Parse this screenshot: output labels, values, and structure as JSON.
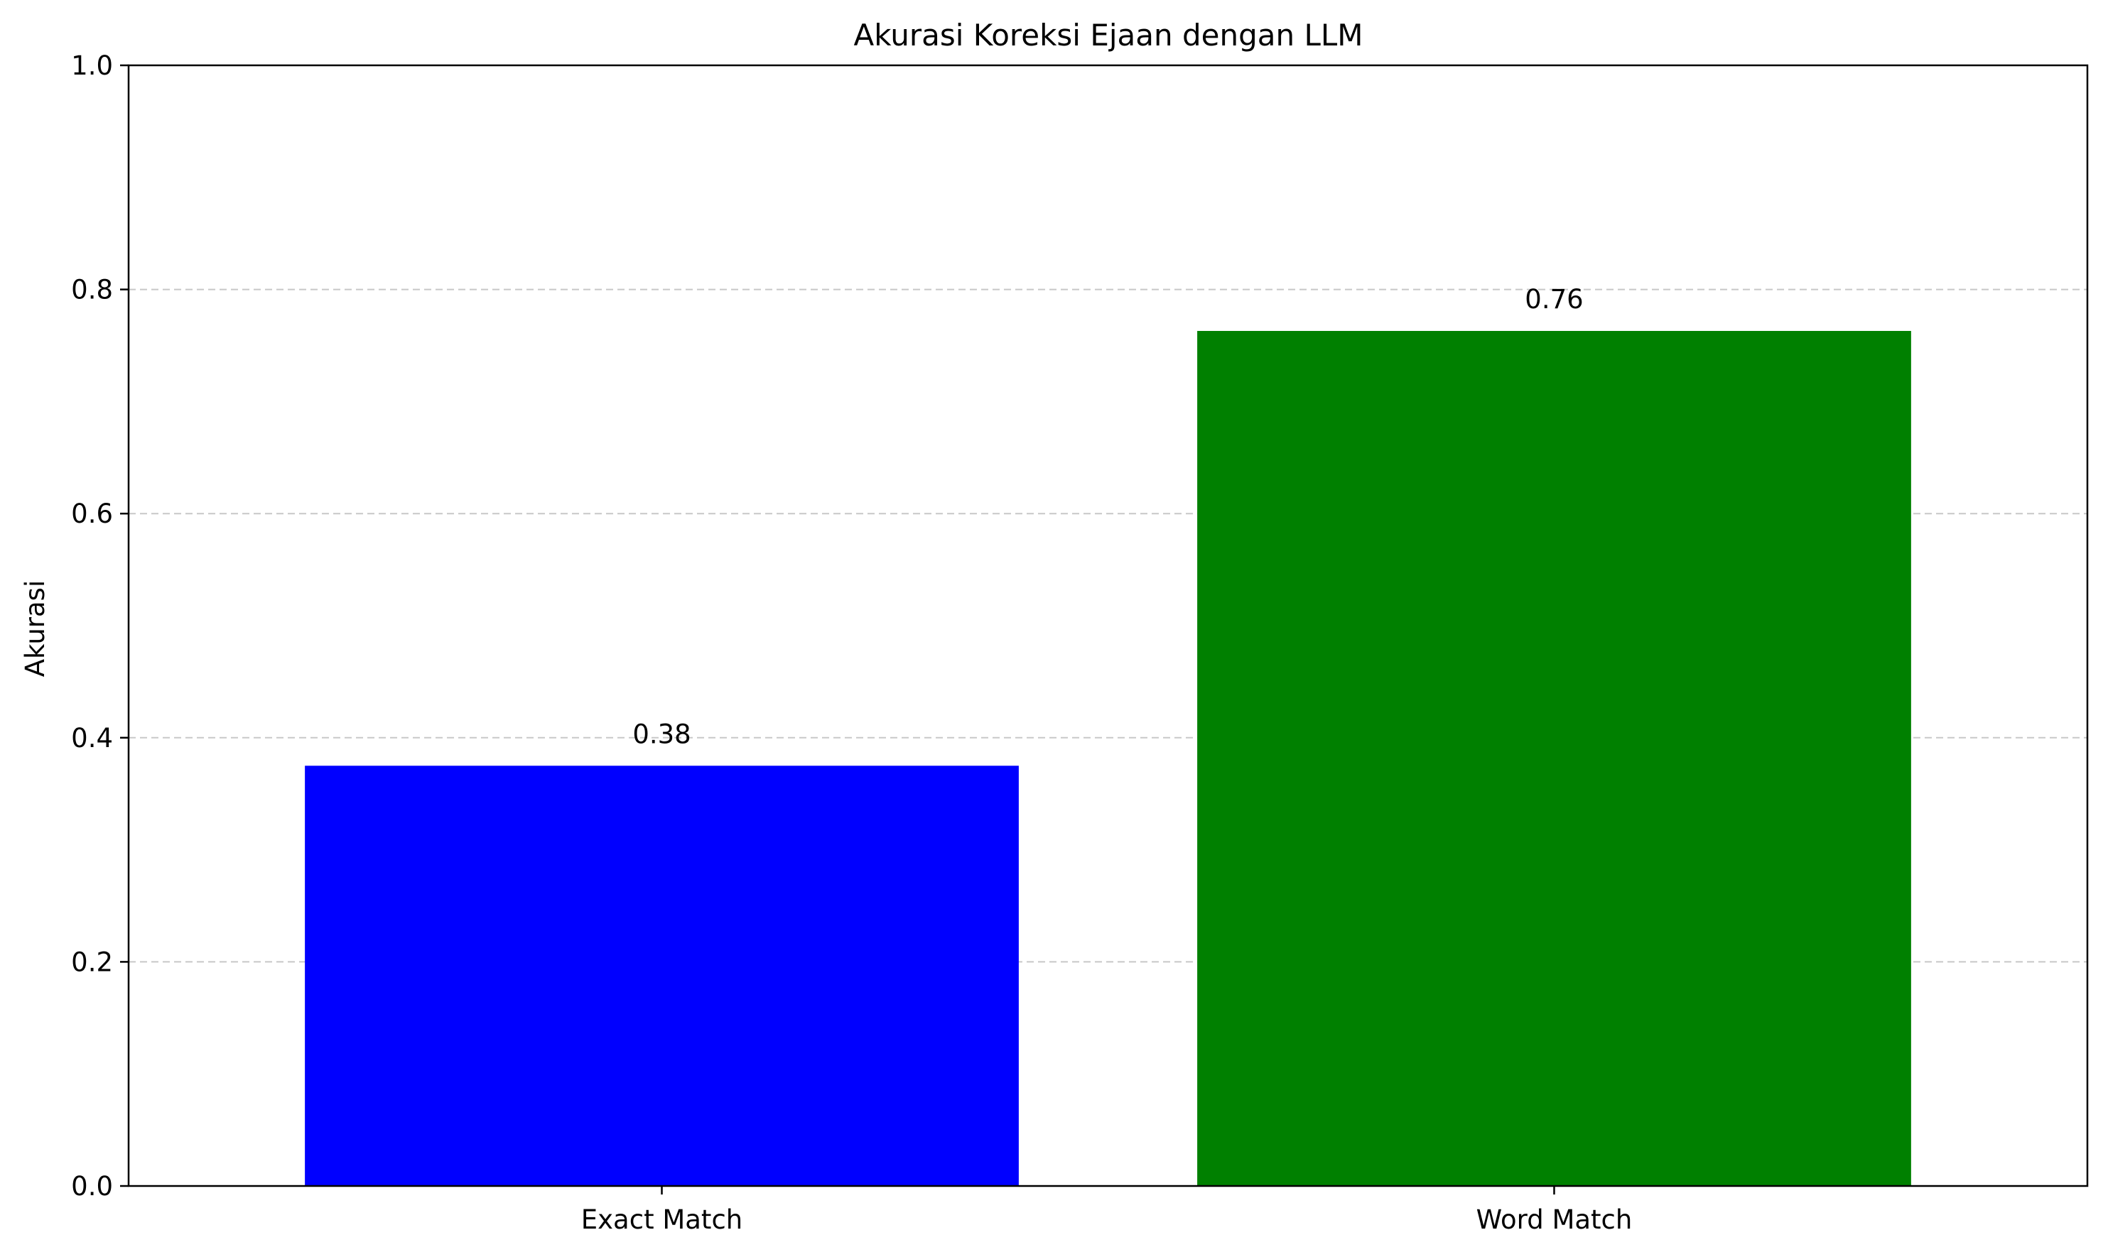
{
  "chart_data": {
    "type": "bar",
    "title": "Akurasi Koreksi Ejaan dengan LLM",
    "xlabel": "",
    "ylabel": "Akurasi",
    "categories": [
      "Exact Match",
      "Word Match"
    ],
    "values": [
      0.375,
      0.763
    ],
    "value_labels": [
      "0.38",
      "0.76"
    ],
    "colors": [
      "#0000ff",
      "#008000"
    ],
    "ylim": [
      0,
      1.0
    ],
    "yticks": [
      0.0,
      0.2,
      0.4,
      0.6,
      0.8,
      1.0
    ],
    "ytick_labels": [
      "0.0",
      "0.2",
      "0.4",
      "0.6",
      "0.8",
      "1.0"
    ],
    "grid": "y-dashed",
    "legend": "none"
  }
}
